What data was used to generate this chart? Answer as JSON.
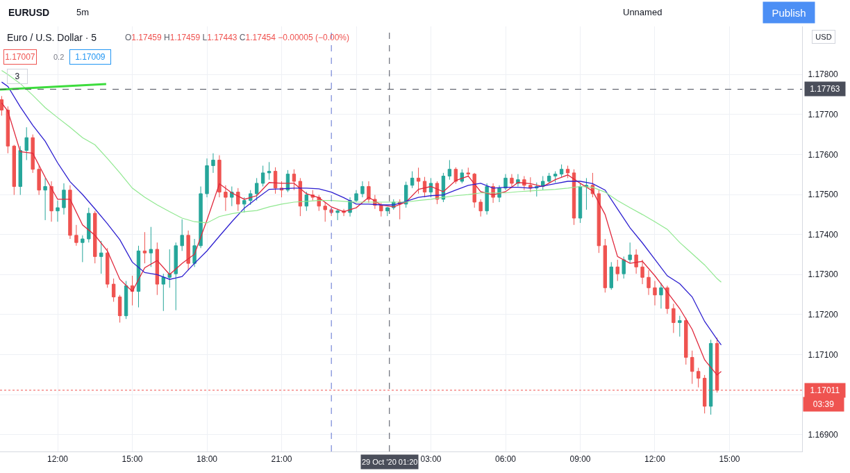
{
  "chart_data": {
    "type": "candlestick",
    "title": "Euro / U.S. Dollar · 5",
    "subtitle": "O1.17459 H1.17459 L1.17443 C1.17454 −0.00005 (−0.00%)",
    "ylabel": "USD",
    "annotations": [
      "EURUSD",
      "5m",
      "Unnamed",
      "Publish",
      "1.17007",
      "0.2",
      "1.17009",
      "3",
      "03:39"
    ],
    "xlim": [
      "2020-10-28T09:41",
      "2020-10-29T17:55"
    ],
    "ylim": [
      1.16858,
      1.1792
    ],
    "xticks": [
      {
        "value": "2020-10-28T12:00",
        "label": "12:00"
      },
      {
        "value": "2020-10-28T15:00",
        "label": "15:00"
      },
      {
        "value": "2020-10-28T18:00",
        "label": "18:00"
      },
      {
        "value": "2020-10-28T21:00",
        "label": "21:00"
      },
      {
        "value": "2020-10-29T00:00",
        "label": null
      },
      {
        "value": "2020-10-29T03:00",
        "label": "03:00"
      },
      {
        "value": "2020-10-29T06:00",
        "label": "06:00"
      },
      {
        "value": "2020-10-29T09:00",
        "label": "09:00"
      },
      {
        "value": "2020-10-29T12:00",
        "label": "12:00"
      },
      {
        "value": "2020-10-29T15:00",
        "label": "15:00"
      }
    ],
    "yticks": [
      {
        "value": 1.169,
        "label": "1.16900"
      },
      {
        "value": 1.17,
        "label": null
      },
      {
        "value": 1.171,
        "label": "1.17100"
      },
      {
        "value": 1.172,
        "label": "1.17200"
      },
      {
        "value": 1.173,
        "label": "1.17300"
      },
      {
        "value": 1.174,
        "label": "1.17400"
      },
      {
        "value": 1.175,
        "label": "1.17500"
      },
      {
        "value": 1.176,
        "label": "1.17600"
      },
      {
        "value": 1.177,
        "label": "1.17700"
      },
      {
        "value": 1.178,
        "label": "1.17800"
      }
    ],
    "grid": true,
    "ref_lines": [
      {
        "axis": "y",
        "value": 1.17763,
        "label": "1.17763",
        "color": "#4a4e5a",
        "line_style": "dashed"
      },
      {
        "axis": "x",
        "value": "2020-10-29T01:20",
        "label": "29 Oct '20 01:20",
        "color": "#4a4e5a",
        "line_style": "dashed"
      },
      {
        "axis": "x",
        "value": "2020-10-28T23:00",
        "color": "#5b6fd0",
        "line_style": "dashed"
      },
      {
        "axis": "y",
        "value": 1.17011,
        "label": "1.17011",
        "color": "#ef5350",
        "line_style": "dotted"
      }
    ],
    "series": [
      {
        "x": [
          "2020-10-28T09:45",
          "2020-10-28T10:00",
          "2020-10-28T10:15",
          "2020-10-28T10:30",
          "2020-10-28T10:45",
          "2020-10-28T11:00",
          "2020-10-28T11:15",
          "2020-10-28T11:30",
          "2020-10-28T11:45",
          "2020-10-28T12:00",
          "2020-10-28T12:15",
          "2020-10-28T12:30",
          "2020-10-28T12:45",
          "2020-10-28T13:00",
          "2020-10-28T13:15",
          "2020-10-28T13:30",
          "2020-10-28T13:45",
          "2020-10-28T14:00",
          "2020-10-28T14:15",
          "2020-10-28T14:30",
          "2020-10-28T14:45",
          "2020-10-28T15:00",
          "2020-10-28T15:15",
          "2020-10-28T15:30",
          "2020-10-28T15:45",
          "2020-10-28T16:00",
          "2020-10-28T16:15",
          "2020-10-28T16:30",
          "2020-10-28T16:45",
          "2020-10-28T17:00",
          "2020-10-28T17:15",
          "2020-10-28T17:30",
          "2020-10-28T17:45",
          "2020-10-28T18:00",
          "2020-10-28T18:15",
          "2020-10-28T18:30",
          "2020-10-28T18:45",
          "2020-10-28T19:00",
          "2020-10-28T19:15",
          "2020-10-28T19:30",
          "2020-10-28T19:45",
          "2020-10-28T20:00",
          "2020-10-28T20:15",
          "2020-10-28T20:30",
          "2020-10-28T20:45",
          "2020-10-28T21:00",
          "2020-10-28T21:15",
          "2020-10-28T21:30",
          "2020-10-28T21:45",
          "2020-10-28T22:00",
          "2020-10-28T22:15",
          "2020-10-28T22:30",
          "2020-10-28T22:45",
          "2020-10-28T23:00",
          "2020-10-28T23:15",
          "2020-10-28T23:30",
          "2020-10-28T23:45",
          "2020-10-29T00:00",
          "2020-10-29T00:15",
          "2020-10-29T00:30",
          "2020-10-29T00:45",
          "2020-10-29T01:00",
          "2020-10-29T01:15",
          "2020-10-29T01:30",
          "2020-10-29T01:45",
          "2020-10-29T02:00",
          "2020-10-29T02:15",
          "2020-10-29T02:30",
          "2020-10-29T02:45",
          "2020-10-29T03:00",
          "2020-10-29T03:15",
          "2020-10-29T03:30",
          "2020-10-29T03:45",
          "2020-10-29T04:00",
          "2020-10-29T04:15",
          "2020-10-29T04:30",
          "2020-10-29T04:45",
          "2020-10-29T05:00",
          "2020-10-29T05:15",
          "2020-10-29T05:30",
          "2020-10-29T05:45",
          "2020-10-29T06:00",
          "2020-10-29T06:15",
          "2020-10-29T06:30",
          "2020-10-29T06:45",
          "2020-10-29T07:00",
          "2020-10-29T07:15",
          "2020-10-29T07:30",
          "2020-10-29T07:45",
          "2020-10-29T08:00",
          "2020-10-29T08:15",
          "2020-10-29T08:30",
          "2020-10-29T08:45",
          "2020-10-29T09:00",
          "2020-10-29T09:15",
          "2020-10-29T09:30",
          "2020-10-29T09:45",
          "2020-10-29T10:00",
          "2020-10-29T10:15",
          "2020-10-29T10:30",
          "2020-10-29T10:45",
          "2020-10-29T11:00",
          "2020-10-29T11:15",
          "2020-10-29T11:30",
          "2020-10-29T11:45",
          "2020-10-29T12:00",
          "2020-10-29T12:15",
          "2020-10-29T12:30",
          "2020-10-29T12:45",
          "2020-10-29T13:00",
          "2020-10-29T13:15",
          "2020-10-29T13:30",
          "2020-10-29T13:45",
          "2020-10-29T14:00",
          "2020-10-29T14:15",
          "2020-10-29T14:30"
        ],
        "ohlc": [
          [
            1.17737,
            1.17746,
            1.17697,
            1.17711
          ],
          [
            1.17711,
            1.1772,
            1.17603,
            1.17621
          ],
          [
            1.17621,
            1.17624,
            1.17499,
            1.1752
          ],
          [
            1.1752,
            1.17621,
            1.17499,
            1.1761
          ],
          [
            1.1761,
            1.17668,
            1.17586,
            1.17642
          ],
          [
            1.17642,
            1.1765,
            1.17554,
            1.17563
          ],
          [
            1.17563,
            1.17572,
            1.17499,
            1.17511
          ],
          [
            1.17511,
            1.17541,
            1.17436,
            1.1752
          ],
          [
            1.1752,
            1.17533,
            1.17432,
            1.17459
          ],
          [
            1.17459,
            1.17485,
            1.17432,
            1.17467
          ],
          [
            1.17467,
            1.17528,
            1.1745,
            1.17511
          ],
          [
            1.17511,
            1.17523,
            1.17389,
            1.17398
          ],
          [
            1.17398,
            1.17424,
            1.17372,
            1.1738
          ],
          [
            1.1738,
            1.17398,
            1.17331,
            1.17389
          ],
          [
            1.17389,
            1.17467,
            1.1738,
            1.17453
          ],
          [
            1.17453,
            1.17459,
            1.17328,
            1.17345
          ],
          [
            1.17345,
            1.17384,
            1.17302,
            1.17354
          ],
          [
            1.17354,
            1.17366,
            1.17267,
            1.17276
          ],
          [
            1.17276,
            1.1729,
            1.17232,
            1.17244
          ],
          [
            1.17244,
            1.17249,
            1.1718,
            1.17197
          ],
          [
            1.17197,
            1.17284,
            1.17189,
            1.17272
          ],
          [
            1.17272,
            1.17297,
            1.17223,
            1.17258
          ],
          [
            1.17258,
            1.17372,
            1.17218,
            1.17359
          ],
          [
            1.17359,
            1.17406,
            1.17328,
            1.17354
          ],
          [
            1.17354,
            1.17419,
            1.17319,
            1.17363
          ],
          [
            1.17363,
            1.1738,
            1.17249,
            1.17276
          ],
          [
            1.17276,
            1.17302,
            1.17209,
            1.17293
          ],
          [
            1.17293,
            1.17363,
            1.17267,
            1.17302
          ],
          [
            1.17302,
            1.1738,
            1.17211,
            1.17372
          ],
          [
            1.17372,
            1.17438,
            1.17359,
            1.17398
          ],
          [
            1.17398,
            1.1741,
            1.17311,
            1.17328
          ],
          [
            1.17328,
            1.17389,
            1.17319,
            1.17372
          ],
          [
            1.17372,
            1.1752,
            1.17366,
            1.17502
          ],
          [
            1.17502,
            1.1759,
            1.17493,
            1.17572
          ],
          [
            1.17572,
            1.17603,
            1.17554,
            1.17586
          ],
          [
            1.17586,
            1.17598,
            1.17493,
            1.17506
          ],
          [
            1.17506,
            1.17523,
            1.17459,
            1.17493
          ],
          [
            1.17493,
            1.1752,
            1.17471,
            1.17506
          ],
          [
            1.17506,
            1.17516,
            1.17459,
            1.17476
          ],
          [
            1.17476,
            1.17493,
            1.17455,
            1.17485
          ],
          [
            1.17485,
            1.17511,
            1.17474,
            1.17502
          ],
          [
            1.17502,
            1.17541,
            1.17485,
            1.17528
          ],
          [
            1.17528,
            1.17572,
            1.1752,
            1.17554
          ],
          [
            1.17554,
            1.17581,
            1.17537,
            1.17558
          ],
          [
            1.17558,
            1.17568,
            1.17502,
            1.17516
          ],
          [
            1.17516,
            1.17533,
            1.17493,
            1.17511
          ],
          [
            1.17511,
            1.17561,
            1.17506,
            1.17551
          ],
          [
            1.17551,
            1.17563,
            1.17511,
            1.17533
          ],
          [
            1.17533,
            1.17541,
            1.17446,
            1.17471
          ],
          [
            1.17471,
            1.17507,
            1.17459,
            1.17499
          ],
          [
            1.17499,
            1.17511,
            1.17485,
            1.17493
          ],
          [
            1.17493,
            1.17499,
            1.17459,
            1.17471
          ],
          [
            1.17471,
            1.17481,
            1.17432,
            1.17462
          ],
          [
            1.17462,
            1.17467,
            1.17446,
            1.17455
          ],
          [
            1.17455,
            1.17464,
            1.17436,
            1.17459
          ],
          [
            1.17459,
            1.17464,
            1.17446,
            1.17455
          ],
          [
            1.17455,
            1.17493,
            1.17445,
            1.17485
          ],
          [
            1.17485,
            1.17511,
            1.17481,
            1.17502
          ],
          [
            1.17502,
            1.17533,
            1.17493,
            1.1752
          ],
          [
            1.1752,
            1.17533,
            1.17479,
            1.17488
          ],
          [
            1.17488,
            1.17499,
            1.17464,
            1.17473
          ],
          [
            1.17473,
            1.17479,
            1.17445,
            1.17459
          ],
          [
            1.17459,
            1.17469,
            1.17446,
            1.17467
          ],
          [
            1.17467,
            1.17488,
            1.17462,
            1.17481
          ],
          [
            1.17481,
            1.17488,
            1.17438,
            1.17476
          ],
          [
            1.17476,
            1.17532,
            1.17467,
            1.17523
          ],
          [
            1.17523,
            1.17558,
            1.17516,
            1.17541
          ],
          [
            1.17541,
            1.17567,
            1.17502,
            1.17533
          ],
          [
            1.17533,
            1.17544,
            1.17493,
            1.17506
          ],
          [
            1.17506,
            1.17541,
            1.17493,
            1.17528
          ],
          [
            1.17528,
            1.17533,
            1.17476,
            1.17488
          ],
          [
            1.17488,
            1.17554,
            1.17481,
            1.17546
          ],
          [
            1.17546,
            1.17586,
            1.17537,
            1.17563
          ],
          [
            1.17563,
            1.17568,
            1.17527,
            1.17533
          ],
          [
            1.17533,
            1.17563,
            1.17528,
            1.17554
          ],
          [
            1.17554,
            1.17567,
            1.17544,
            1.17551
          ],
          [
            1.17551,
            1.17554,
            1.17467,
            1.17481
          ],
          [
            1.17481,
            1.17488,
            1.17445,
            1.17459
          ],
          [
            1.17459,
            1.17528,
            1.1745,
            1.1752
          ],
          [
            1.1752,
            1.17528,
            1.17479,
            1.17493
          ],
          [
            1.17493,
            1.17523,
            1.17481,
            1.17516
          ],
          [
            1.17516,
            1.17551,
            1.17511,
            1.17541
          ],
          [
            1.17541,
            1.17551,
            1.17516,
            1.17528
          ],
          [
            1.17528,
            1.17551,
            1.1752,
            1.17537
          ],
          [
            1.17537,
            1.17546,
            1.17511,
            1.17523
          ],
          [
            1.17523,
            1.17543,
            1.17506,
            1.17516
          ],
          [
            1.17516,
            1.1753,
            1.17495,
            1.1752
          ],
          [
            1.1752,
            1.17546,
            1.17511,
            1.17533
          ],
          [
            1.17533,
            1.17554,
            1.17528,
            1.17546
          ],
          [
            1.17546,
            1.17558,
            1.1753,
            1.17551
          ],
          [
            1.17551,
            1.17575,
            1.17543,
            1.17563
          ],
          [
            1.17563,
            1.17572,
            1.17541,
            1.17554
          ],
          [
            1.17554,
            1.17563,
            1.17424,
            1.17441
          ],
          [
            1.17441,
            1.17528,
            1.17429,
            1.1752
          ],
          [
            1.1752,
            1.17541,
            1.17462,
            1.17523
          ],
          [
            1.17523,
            1.17554,
            1.17493,
            1.17502
          ],
          [
            1.17502,
            1.17511,
            1.17354,
            1.17372
          ],
          [
            1.17372,
            1.17389,
            1.17255,
            1.17267
          ],
          [
            1.17267,
            1.17331,
            1.17262,
            1.17319
          ],
          [
            1.17319,
            1.17337,
            1.17284,
            1.17302
          ],
          [
            1.17302,
            1.17345,
            1.1729,
            1.17337
          ],
          [
            1.17337,
            1.1738,
            1.17328,
            1.17349
          ],
          [
            1.17349,
            1.17363,
            1.17302,
            1.17319
          ],
          [
            1.17319,
            1.17337,
            1.17276,
            1.17293
          ],
          [
            1.17293,
            1.17311,
            1.17249,
            1.17267
          ],
          [
            1.17267,
            1.17284,
            1.17223,
            1.17249
          ],
          [
            1.17249,
            1.17279,
            1.17215,
            1.17267
          ],
          [
            1.17267,
            1.17272,
            1.17202,
            1.17215
          ],
          [
            1.17215,
            1.17227,
            1.17154,
            1.1718
          ],
          [
            1.1718,
            1.17197,
            1.17145,
            1.17185
          ],
          [
            1.17185,
            1.17192,
            1.17075,
            1.17093
          ],
          [
            1.17093,
            1.1711,
            1.17027,
            1.17058
          ],
          [
            1.17058,
            1.17067,
            1.17018,
            1.17041
          ],
          [
            1.17041,
            1.17049,
            1.16953,
            1.16971
          ],
          [
            1.16971,
            1.17137,
            1.1695,
            1.17128
          ],
          [
            1.17128,
            1.17142,
            1.17005,
            1.17011
          ]
        ],
        "colors": [
          "#ef5350",
          "#ef5350",
          "#ef5350",
          "#26a69a",
          "#26a69a",
          "#ef5350",
          "#ef5350",
          "#26a69a",
          "#ef5350",
          "#26a69a",
          "#26a69a",
          "#ef5350",
          "#ef5350",
          "#26a69a",
          "#26a69a",
          "#ef5350",
          "#26a69a",
          "#ef5350",
          "#ef5350",
          "#ef5350",
          "#26a69a",
          "#ef5350",
          "#26a69a",
          "#ef5350",
          "#26a69a",
          "#ef5350",
          "#26a69a",
          "#26a69a",
          "#26a69a",
          "#26a69a",
          "#ef5350",
          "#26a69a",
          "#26a69a",
          "#26a69a",
          "#26a69a",
          "#ef5350",
          "#ef5350",
          "#26a69a",
          "#ef5350",
          "#26a69a",
          "#26a69a",
          "#26a69a",
          "#26a69a",
          "#26a69a",
          "#ef5350",
          "#ef5350",
          "#26a69a",
          "#ef5350",
          "#ef5350",
          "#26a69a",
          "#ef5350",
          "#ef5350",
          "#ef5350",
          "#ef5350",
          "#26a69a",
          "#ef5350",
          "#26a69a",
          "#26a69a",
          "#26a69a",
          "#ef5350",
          "#ef5350",
          "#ef5350",
          "#26a69a",
          "#26a69a",
          "#ef5350",
          "#26a69a",
          "#26a69a",
          "#ef5350",
          "#ef5350",
          "#26a69a",
          "#ef5350",
          "#26a69a",
          "#26a69a",
          "#ef5350",
          "#26a69a",
          "#ef5350",
          "#ef5350",
          "#ef5350",
          "#26a69a",
          "#ef5350",
          "#26a69a",
          "#26a69a",
          "#ef5350",
          "#26a69a",
          "#ef5350",
          "#ef5350",
          "#26a69a",
          "#26a69a",
          "#26a69a",
          "#26a69a",
          "#26a69a",
          "#ef5350",
          "#ef5350",
          "#26a69a",
          "#26a69a",
          "#ef5350",
          "#ef5350",
          "#ef5350",
          "#26a69a",
          "#ef5350",
          "#26a69a",
          "#26a69a",
          "#ef5350",
          "#ef5350",
          "#ef5350",
          "#ef5350",
          "#26a69a",
          "#ef5350",
          "#ef5350",
          "#26a69a",
          "#ef5350",
          "#ef5350",
          "#ef5350",
          "#ef5350",
          "#26a69a",
          "#ef5350"
        ]
      },
      {
        "type": "line",
        "color": "#e0283c",
        "x": [
          "2020-10-28T09:45",
          "2020-10-28T10:00",
          "2020-10-28T10:30",
          "2020-10-28T11:00",
          "2020-10-28T11:30",
          "2020-10-28T12:00",
          "2020-10-28T12:30",
          "2020-10-28T13:00",
          "2020-10-28T13:30",
          "2020-10-28T14:00",
          "2020-10-28T14:30",
          "2020-10-28T15:00",
          "2020-10-28T15:30",
          "2020-10-28T16:00",
          "2020-10-28T16:30",
          "2020-10-28T17:00",
          "2020-10-28T17:30",
          "2020-10-28T18:00",
          "2020-10-28T18:30",
          "2020-10-28T19:00",
          "2020-10-28T19:30",
          "2020-10-28T20:00",
          "2020-10-28T20:30",
          "2020-10-28T21:00",
          "2020-10-28T21:30",
          "2020-10-28T22:00",
          "2020-10-28T22:30",
          "2020-10-28T23:00",
          "2020-10-28T23:30",
          "2020-10-29T00:00",
          "2020-10-29T00:30",
          "2020-10-29T01:00",
          "2020-10-29T01:30",
          "2020-10-29T02:00",
          "2020-10-29T02:30",
          "2020-10-29T03:00",
          "2020-10-29T03:30",
          "2020-10-29T04:00",
          "2020-10-29T04:30",
          "2020-10-29T05:00",
          "2020-10-29T05:30",
          "2020-10-29T06:00",
          "2020-10-29T06:30",
          "2020-10-29T07:00",
          "2020-10-29T07:30",
          "2020-10-29T08:00",
          "2020-10-29T08:30",
          "2020-10-29T09:00",
          "2020-10-29T09:30",
          "2020-10-29T10:00",
          "2020-10-29T10:30",
          "2020-10-29T11:00",
          "2020-10-29T11:30",
          "2020-10-29T12:00",
          "2020-10-29T12:30",
          "2020-10-29T13:00",
          "2020-10-29T13:30",
          "2020-10-29T14:00",
          "2020-10-29T14:30",
          "2020-10-29T14:40"
        ],
        "values": [
          1.17729,
          1.17708,
          1.17607,
          1.17603,
          1.17543,
          1.17488,
          1.17488,
          1.17424,
          1.17398,
          1.17359,
          1.17288,
          1.17258,
          1.17317,
          1.17335,
          1.173,
          1.17328,
          1.17351,
          1.17436,
          1.17527,
          1.17504,
          1.17488,
          1.17497,
          1.1753,
          1.17528,
          1.17528,
          1.17502,
          1.17492,
          1.17469,
          1.17457,
          1.17467,
          1.17493,
          1.17474,
          1.17469,
          1.17481,
          1.17513,
          1.1752,
          1.17507,
          1.17535,
          1.17546,
          1.17507,
          1.17499,
          1.17507,
          1.1753,
          1.17527,
          1.1752,
          1.17537,
          1.17549,
          1.17528,
          1.17509,
          1.1745,
          1.17345,
          1.17328,
          1.17333,
          1.17297,
          1.17256,
          1.17215,
          1.17163,
          1.17087,
          1.17049,
          1.17058
        ]
      },
      {
        "type": "line",
        "color": "#2d1fd0",
        "x": [
          "2020-10-28T09:45",
          "2020-10-28T10:00",
          "2020-10-28T10:30",
          "2020-10-28T11:00",
          "2020-10-28T11:30",
          "2020-10-28T12:00",
          "2020-10-28T12:30",
          "2020-10-28T13:00",
          "2020-10-28T13:30",
          "2020-10-28T14:00",
          "2020-10-28T14:30",
          "2020-10-28T15:00",
          "2020-10-28T15:30",
          "2020-10-28T16:00",
          "2020-10-28T16:30",
          "2020-10-28T17:00",
          "2020-10-28T17:30",
          "2020-10-28T18:00",
          "2020-10-28T18:30",
          "2020-10-28T19:00",
          "2020-10-28T19:30",
          "2020-10-28T20:00",
          "2020-10-28T20:30",
          "2020-10-28T21:00",
          "2020-10-28T21:30",
          "2020-10-28T22:00",
          "2020-10-28T22:30",
          "2020-10-28T23:00",
          "2020-10-28T23:30",
          "2020-10-29T00:00",
          "2020-10-29T00:30",
          "2020-10-29T01:00",
          "2020-10-29T01:30",
          "2020-10-29T02:00",
          "2020-10-29T02:30",
          "2020-10-29T03:00",
          "2020-10-29T03:30",
          "2020-10-29T04:00",
          "2020-10-29T04:30",
          "2020-10-29T05:00",
          "2020-10-29T05:30",
          "2020-10-29T06:00",
          "2020-10-29T06:30",
          "2020-10-29T07:00",
          "2020-10-29T07:30",
          "2020-10-29T08:00",
          "2020-10-29T08:30",
          "2020-10-29T09:00",
          "2020-10-29T09:30",
          "2020-10-29T10:00",
          "2020-10-29T10:30",
          "2020-10-29T11:00",
          "2020-10-29T11:30",
          "2020-10-29T12:00",
          "2020-10-29T12:30",
          "2020-10-29T13:00",
          "2020-10-29T13:30",
          "2020-10-29T14:00",
          "2020-10-29T14:30",
          "2020-10-29T14:40"
        ],
        "values": [
          1.17781,
          1.1777,
          1.17719,
          1.17673,
          1.17633,
          1.17579,
          1.17532,
          1.175,
          1.17464,
          1.17427,
          1.17387,
          1.17331,
          1.17305,
          1.173,
          1.17288,
          1.17295,
          1.17328,
          1.17359,
          1.17396,
          1.17432,
          1.17466,
          1.1749,
          1.17513,
          1.17514,
          1.17516,
          1.17516,
          1.17514,
          1.17506,
          1.17492,
          1.17476,
          1.17476,
          1.17474,
          1.17474,
          1.17483,
          1.17493,
          1.17497,
          1.17499,
          1.17511,
          1.17523,
          1.17528,
          1.17516,
          1.17518,
          1.17518,
          1.17516,
          1.17521,
          1.17527,
          1.17533,
          1.17533,
          1.17527,
          1.17511,
          1.17464,
          1.17417,
          1.17379,
          1.17338,
          1.17297,
          1.17277,
          1.17244,
          1.17183,
          1.17138,
          1.17124
        ]
      },
      {
        "type": "line",
        "color": "#90e890",
        "x": [
          "2020-10-28T09:45",
          "2020-10-28T10:00",
          "2020-10-28T10:30",
          "2020-10-28T11:00",
          "2020-10-28T11:30",
          "2020-10-28T12:00",
          "2020-10-28T12:30",
          "2020-10-28T13:00",
          "2020-10-28T13:30",
          "2020-10-28T14:00",
          "2020-10-28T14:30",
          "2020-10-28T15:00",
          "2020-10-28T15:30",
          "2020-10-28T16:00",
          "2020-10-28T16:30",
          "2020-10-28T17:00",
          "2020-10-28T17:30",
          "2020-10-28T18:00",
          "2020-10-28T18:30",
          "2020-10-28T19:00",
          "2020-10-28T19:30",
          "2020-10-28T20:00",
          "2020-10-28T20:30",
          "2020-10-28T21:00",
          "2020-10-28T21:30",
          "2020-10-28T22:00",
          "2020-10-28T22:30",
          "2020-10-28T23:00",
          "2020-10-28T23:30",
          "2020-10-29T00:00",
          "2020-10-29T00:30",
          "2020-10-29T01:00",
          "2020-10-29T01:30",
          "2020-10-29T02:00",
          "2020-10-29T02:30",
          "2020-10-29T03:00",
          "2020-10-29T03:30",
          "2020-10-29T04:00",
          "2020-10-29T04:30",
          "2020-10-29T05:00",
          "2020-10-29T05:30",
          "2020-10-29T06:00",
          "2020-10-29T06:30",
          "2020-10-29T07:00",
          "2020-10-29T07:30",
          "2020-10-29T08:00",
          "2020-10-29T08:30",
          "2020-10-29T09:00",
          "2020-10-29T09:30",
          "2020-10-29T10:00",
          "2020-10-29T10:30",
          "2020-10-29T11:00",
          "2020-10-29T11:30",
          "2020-10-29T12:00",
          "2020-10-29T12:30",
          "2020-10-29T13:00",
          "2020-10-29T13:30",
          "2020-10-29T14:00",
          "2020-10-29T14:30",
          "2020-10-29T14:40"
        ],
        "values": [
          1.1781,
          1.178,
          1.17777,
          1.17748,
          1.17717,
          1.17692,
          1.17668,
          1.17642,
          1.17624,
          1.1759,
          1.17554,
          1.17516,
          1.17493,
          1.17474,
          1.17457,
          1.17441,
          1.17432,
          1.17429,
          1.17445,
          1.17452,
          1.17457,
          1.1746,
          1.17469,
          1.17476,
          1.17481,
          1.17483,
          1.17485,
          1.17485,
          1.17483,
          1.17481,
          1.17481,
          1.17481,
          1.17481,
          1.17481,
          1.17485,
          1.17488,
          1.17493,
          1.17497,
          1.175,
          1.17504,
          1.17504,
          1.17504,
          1.17507,
          1.17509,
          1.17511,
          1.17513,
          1.17516,
          1.1752,
          1.17518,
          1.17506,
          1.17485,
          1.17467,
          1.1745,
          1.17432,
          1.17413,
          1.1738,
          1.17352,
          1.17324,
          1.1729,
          1.17281
        ]
      },
      {
        "type": "line",
        "color": "#3ddc3d",
        "x": [
          "2020-10-28T09:41",
          "2020-10-28T13:57"
        ],
        "values": [
          1.17762,
          1.17776
        ]
      }
    ]
  }
}
